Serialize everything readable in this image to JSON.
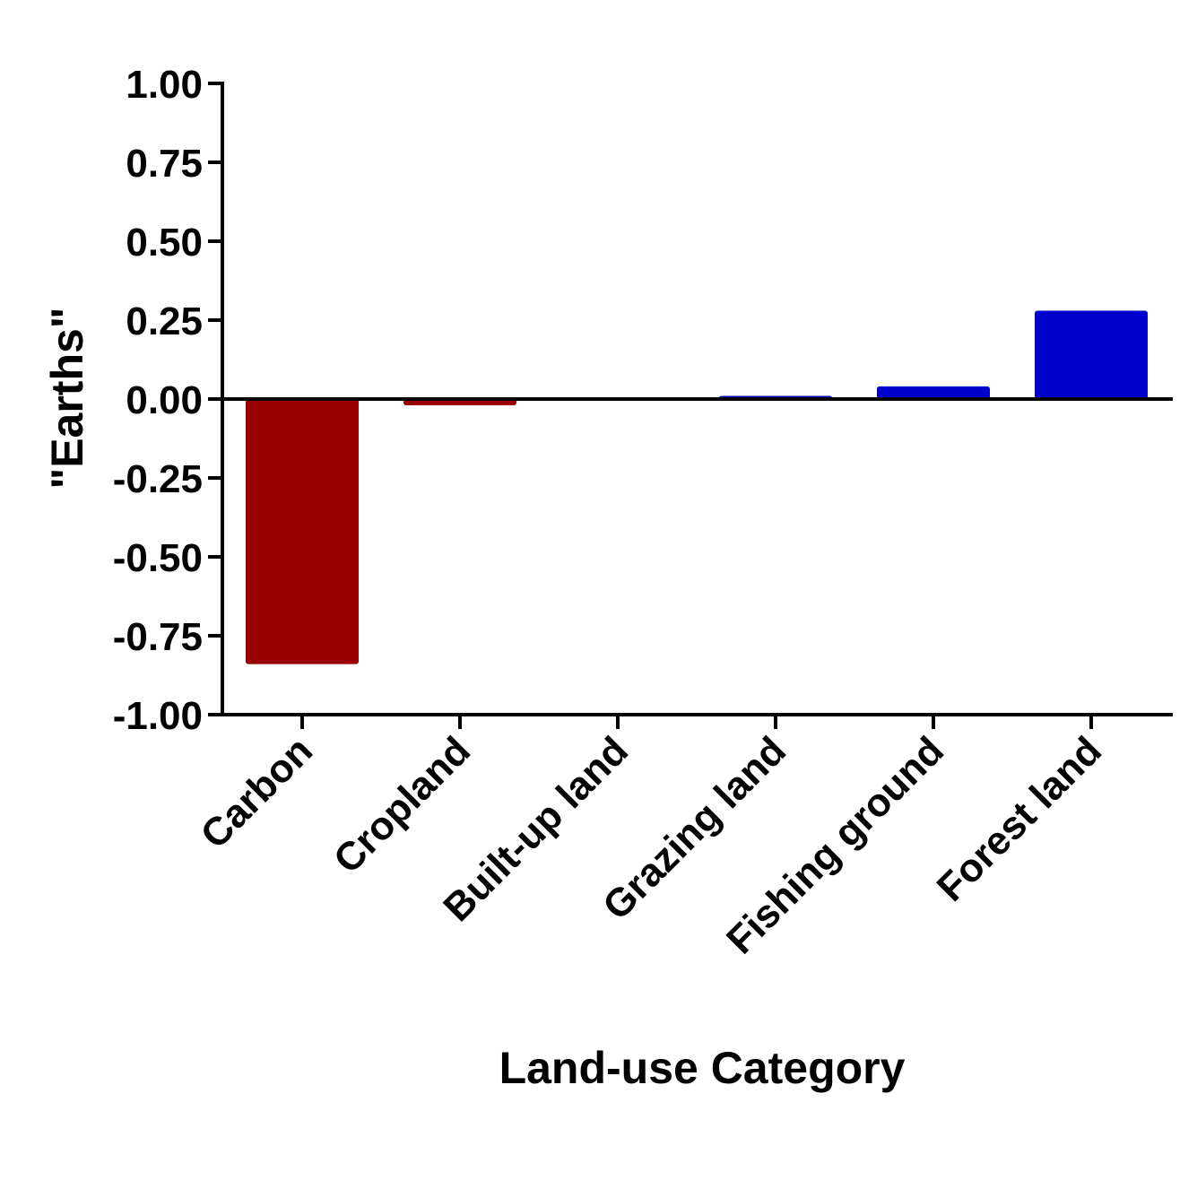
{
  "chart_data": {
    "type": "bar",
    "title": "",
    "xlabel": "Land-use Category",
    "ylabel": "\"Earths\"",
    "categories": [
      "Carbon",
      "Cropland",
      "Built-up land",
      "Grazing land",
      "Fishing ground",
      "Forest land"
    ],
    "values": [
      -0.84,
      -0.02,
      0.0,
      0.01,
      0.04,
      0.28
    ],
    "ylim": [
      -1.0,
      1.0
    ],
    "yticks": [
      "1.00",
      "0.75",
      "0.50",
      "0.25",
      "0.00",
      "-0.25",
      "-0.50",
      "-0.75",
      "-1.00"
    ],
    "grid": false,
    "legend": "none",
    "colors": {
      "negative": "#990000",
      "positive": "#0000CC",
      "axis": "#000000"
    }
  }
}
